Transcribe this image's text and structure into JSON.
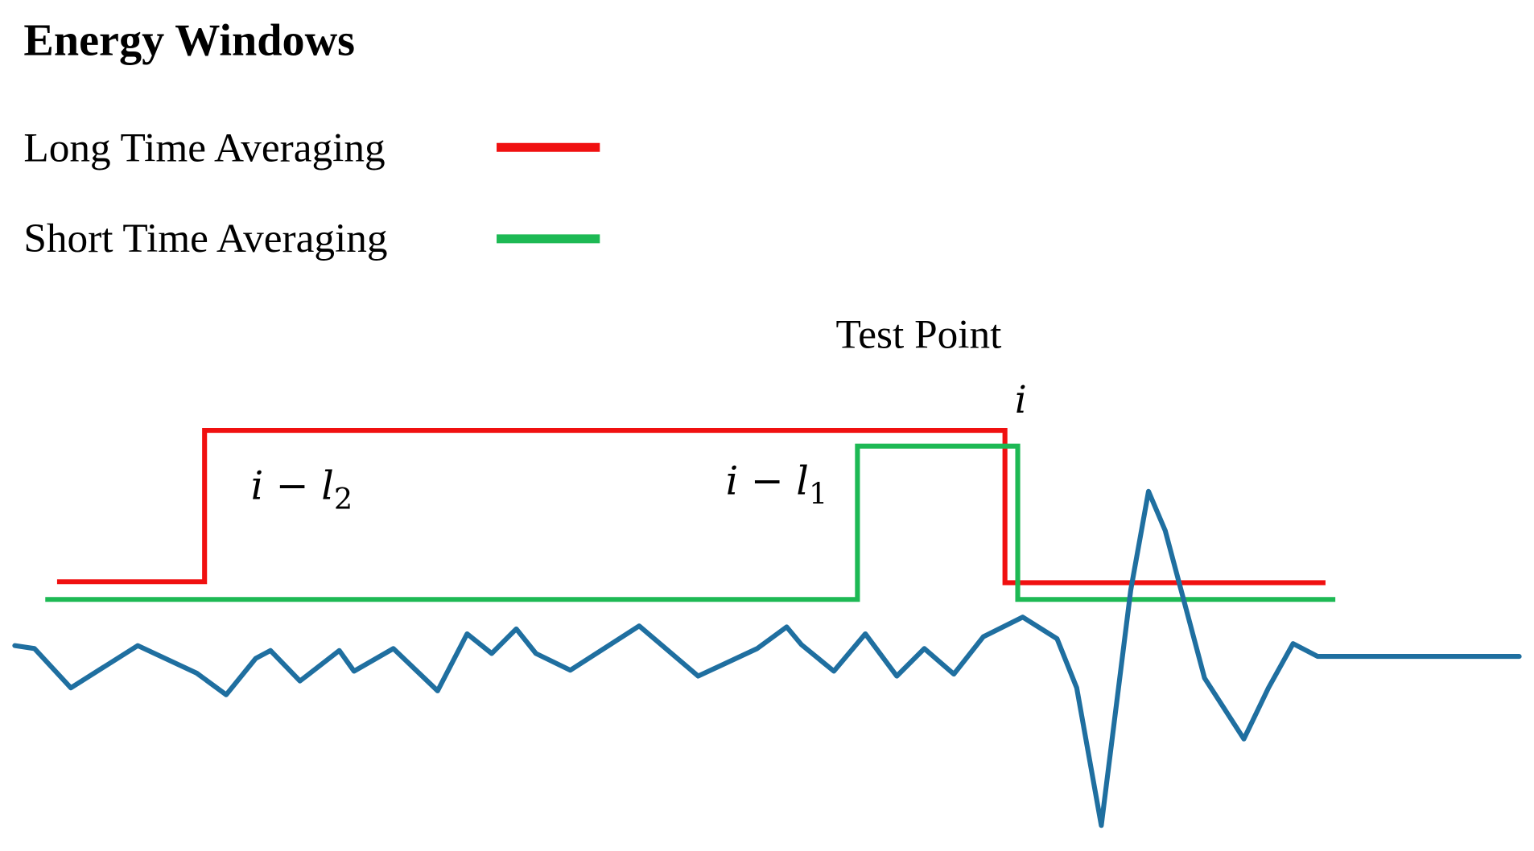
{
  "header": {
    "title": "Energy Windows"
  },
  "legend": {
    "items": [
      {
        "label": "Long Time Averaging"
      },
      {
        "label": "Short Time Averaging"
      }
    ]
  },
  "annotations": {
    "test_point": "Test Point",
    "i": "i",
    "long_start": {
      "text": "i − l",
      "sub": "2"
    },
    "short_start": {
      "text": "i − l",
      "sub": "1"
    }
  }
}
